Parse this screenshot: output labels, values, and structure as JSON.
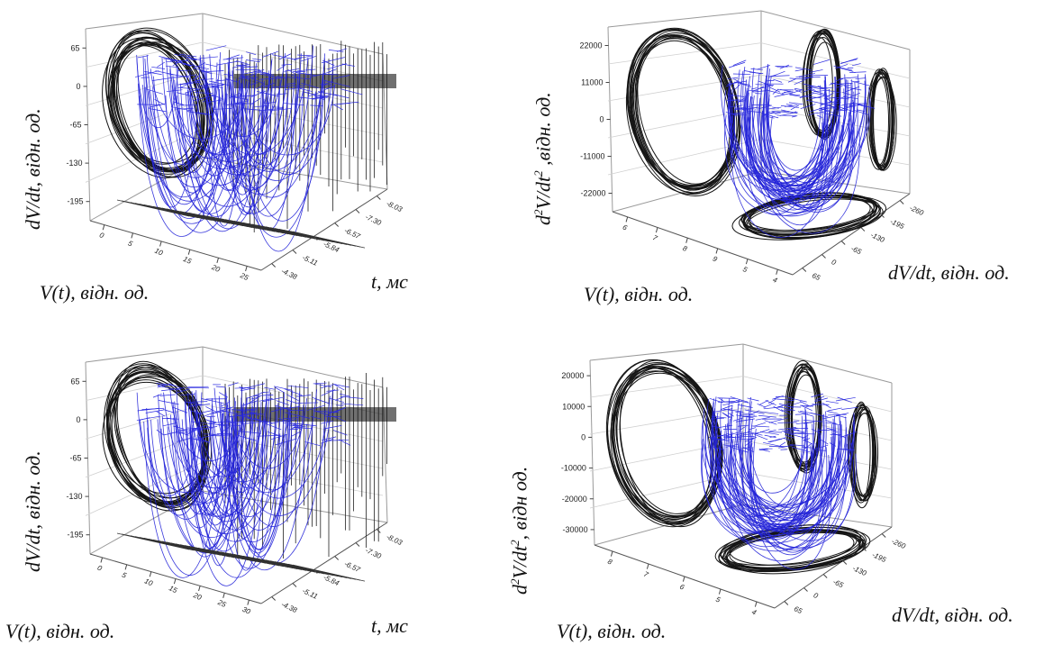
{
  "chart_data": [
    {
      "type": "line",
      "projection": "3d",
      "zlabel": "dV/dt, відн. од.",
      "xlabel": "V(t), відн. од.",
      "ylabel": "t, мс",
      "z_ticks": [
        "65",
        "0",
        "-65",
        "-130",
        "-195"
      ],
      "x_ticks": [
        "0",
        "5",
        "10",
        "15",
        "20",
        "25"
      ],
      "y_ticks": [
        "-4.38",
        "-5.11",
        "-5.84",
        "-6.57",
        "-7.30",
        "-8.03"
      ],
      "series": [
        {
          "color": "#1a1adc"
        },
        {
          "color": "#111111"
        }
      ]
    },
    {
      "type": "line",
      "projection": "3d",
      "zlabel": "d²V/dt², відн. од.",
      "zlabel_base": "d",
      "zlabel_sup1": "2",
      "zlabel_mid": "V/dt",
      "zlabel_sup2": "2",
      "zlabel_end": " ,відн. од.",
      "xlabel": "V(t), відн. од.",
      "ylabel": "dV/dt, відн. од.",
      "z_ticks": [
        "22000",
        "11000",
        "0",
        "-11000",
        "-22000"
      ],
      "x_ticks": [
        "6",
        "7",
        "8",
        "9",
        "5",
        "4"
      ],
      "y_ticks": [
        "65",
        "0",
        "-65",
        "-130",
        "-195",
        "-260"
      ],
      "series": [
        {
          "color": "#1a1adc"
        },
        {
          "color": "#111111"
        }
      ]
    },
    {
      "type": "line",
      "projection": "3d",
      "zlabel": "dV/dt, відн. од.",
      "xlabel": "V(t), відн. од.",
      "ylabel": "t, мс",
      "z_ticks": [
        "65",
        "0",
        "-65",
        "-130",
        "-195"
      ],
      "x_ticks": [
        "0",
        "5",
        "10",
        "15",
        "20",
        "25",
        "30"
      ],
      "y_ticks": [
        "-4.38",
        "-5.11",
        "-5.84",
        "-6.57",
        "-7.30",
        "-8.03"
      ],
      "series": [
        {
          "color": "#1a1adc"
        },
        {
          "color": "#111111"
        }
      ]
    },
    {
      "type": "line",
      "projection": "3d",
      "zlabel": "d²V/dt², відн од.",
      "zlabel_base": "d",
      "zlabel_sup1": "2",
      "zlabel_mid": "V/dt",
      "zlabel_sup2": "2",
      "zlabel_end": ", відн од.",
      "xlabel": "V(t), відн. од.",
      "ylabel": "dV/dt, відн. од.",
      "z_ticks": [
        "20000",
        "10000",
        "0",
        "-10000",
        "-20000",
        "-30000"
      ],
      "x_ticks": [
        "8",
        "7",
        "6",
        "5",
        "4"
      ],
      "y_ticks": [
        "65",
        "0",
        "-65",
        "-130",
        "-195",
        "-260"
      ],
      "series": [
        {
          "color": "#1a1adc"
        },
        {
          "color": "#111111"
        }
      ]
    }
  ]
}
